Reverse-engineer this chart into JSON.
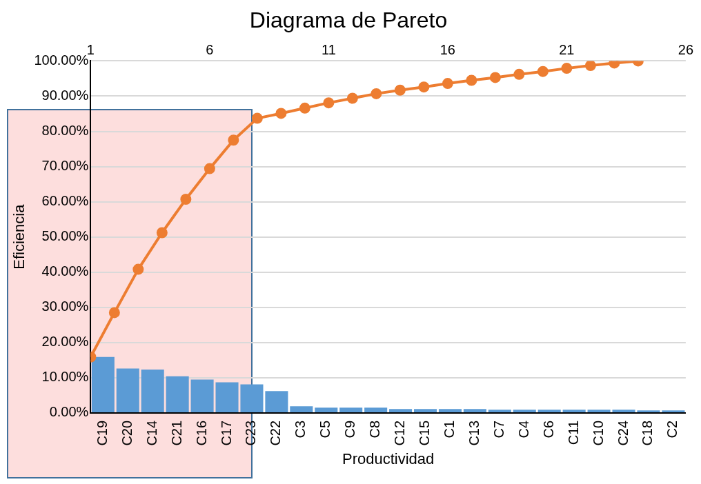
{
  "chart_data": {
    "type": "bar",
    "title": "Diagrama de Pareto",
    "xlabel": "Productividad",
    "ylabel": "Eficiencia",
    "categories": [
      "C19",
      "C20",
      "C14",
      "C21",
      "C16",
      "C17",
      "C23",
      "C22",
      "C3",
      "C5",
      "C9",
      "C8",
      "C12",
      "C15",
      "C1",
      "C13",
      "C7",
      "C4",
      "C6",
      "C11",
      "C10",
      "C24",
      "C18",
      "C2"
    ],
    "series": [
      {
        "color": "#5b9bd5",
        "values": [
          15.9,
          12.6,
          12.3,
          10.4,
          9.5,
          8.7,
          8.1,
          6.2,
          1.9,
          1.5,
          1.5,
          1.5,
          1.1,
          1.1,
          1.1,
          1.1,
          0.9,
          0.9,
          0.9,
          0.9,
          0.9,
          0.9,
          0.7,
          0.7
        ]
      },
      {
        "type": "line",
        "axis": "x2",
        "color": "#ed7d31",
        "marker": "circle",
        "x": [
          1,
          2,
          3,
          4,
          5,
          6,
          7,
          8,
          9,
          10,
          11,
          12,
          13,
          14,
          15,
          16,
          17,
          18,
          19,
          20,
          21,
          22,
          23,
          24
        ],
        "values": [
          15.9,
          28.5,
          40.8,
          51.2,
          60.7,
          69.4,
          77.5,
          83.7,
          85.1,
          86.6,
          88.1,
          89.4,
          90.7,
          91.7,
          92.6,
          93.6,
          94.5,
          95.3,
          96.2,
          97.0,
          97.9,
          98.7,
          99.4,
          100
        ]
      }
    ],
    "ylim": [
      0,
      100
    ],
    "yticks": [
      {
        "value": 0,
        "label": "0.00%"
      },
      {
        "value": 10,
        "label": "10.00%"
      },
      {
        "value": 20,
        "label": "20.00%"
      },
      {
        "value": 30,
        "label": "30.00%"
      },
      {
        "value": 40,
        "label": "40.00%"
      },
      {
        "value": 50,
        "label": "50.00%"
      },
      {
        "value": 60,
        "label": "60.00%"
      },
      {
        "value": 70,
        "label": "70.00%"
      },
      {
        "value": 80,
        "label": "80.00%"
      },
      {
        "value": 90,
        "label": "90.00%"
      },
      {
        "value": 100,
        "label": "100.00%"
      }
    ],
    "x2lim": [
      1,
      26
    ],
    "x2ticks": [
      1,
      6,
      11,
      16,
      21,
      26
    ],
    "grid": "y",
    "legend": false
  }
}
